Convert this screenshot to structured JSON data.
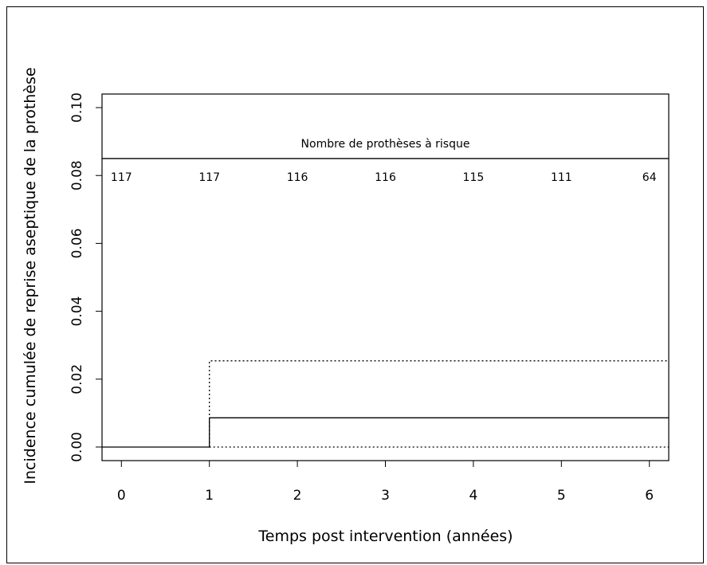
{
  "chart_data": {
    "type": "line",
    "title": "",
    "xlabel": "Temps post intervention (années)",
    "ylabel": "Incidence cumulée de reprise aseptique de la prothèse",
    "xlim": [
      -0.22,
      6.22
    ],
    "ylim": [
      -0.004,
      0.104
    ],
    "x_ticks": [
      "0",
      "1",
      "2",
      "3",
      "4",
      "5",
      "6"
    ],
    "y_ticks": [
      "0.00",
      "0.02",
      "0.04",
      "0.06",
      "0.08",
      "0.10"
    ],
    "grid": false,
    "series": [
      {
        "style": "solid",
        "step": true,
        "x": [
          -0.22,
          1,
          1,
          6.22
        ],
        "y": [
          0.0,
          0.0,
          0.0086,
          0.0086
        ]
      },
      {
        "style": "dotted",
        "step": true,
        "x": [
          1,
          1,
          6.22
        ],
        "y": [
          0.0,
          0.0254,
          0.0254
        ]
      },
      {
        "style": "dotted",
        "step": false,
        "x": [
          1,
          6.22
        ],
        "y": [
          0.0,
          0.0
        ]
      }
    ],
    "risk_table": {
      "title": "Nombre de prothèses à risque",
      "y": 0.085,
      "x": [
        0,
        1,
        2,
        3,
        4,
        5,
        6
      ],
      "values": [
        "117",
        "117",
        "116",
        "116",
        "115",
        "111",
        "64"
      ]
    }
  }
}
